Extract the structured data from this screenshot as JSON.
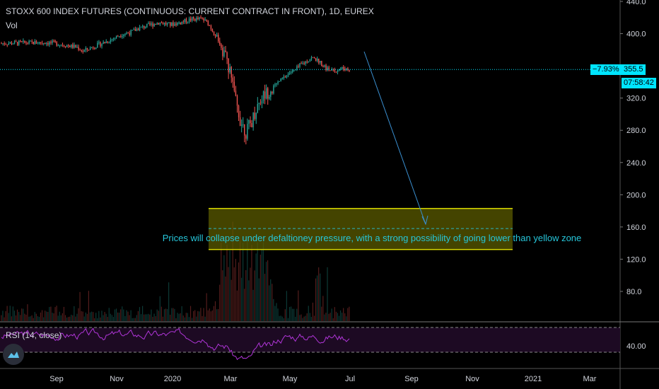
{
  "header": {
    "title": "STOXX 600 INDEX FUTURES (CONTINUOUS: CURRENT CONTRACT IN FRONT), 1D, EUREX",
    "volume_label": "Vol",
    "rsi_label": "RSI (14, close)"
  },
  "price_badges": {
    "change": "−7.93%",
    "price": "355.5",
    "countdown": "07:58:42"
  },
  "annotation": "Prices will collapse under defaltioney pressure, with a strong possibility of going lower than yellow zone",
  "colors": {
    "up": "#26a69a",
    "down": "#ef5350",
    "accent": "#00e5ff",
    "zone_fill": "#5b5b00",
    "zone_border": "#d4d400",
    "rsi": "#b035d8",
    "annotation": "#26c6da"
  },
  "logo_icon": "tradingview-cloud-icon",
  "chart_data": {
    "type": "candlestick",
    "y_axis": {
      "ticks": [
        "440.0",
        "400.0",
        "320.0",
        "280.0",
        "240.0",
        "200.0",
        "160.0",
        "120.0",
        "80.0"
      ],
      "range": [
        45,
        445
      ]
    },
    "x_axis": {
      "ticks": [
        "Sep",
        "Nov",
        "2020",
        "Mar",
        "May",
        "Jul",
        "Sep",
        "Nov",
        "2021",
        "Mar"
      ]
    },
    "current_price": 355.5,
    "price_path": [
      [
        0,
        388
      ],
      [
        8,
        389
      ],
      [
        10,
        388
      ],
      [
        14,
        383
      ],
      [
        15,
        378
      ],
      [
        17,
        384
      ],
      [
        20,
        392
      ],
      [
        22,
        399
      ],
      [
        24,
        402
      ],
      [
        25,
        406
      ],
      [
        27,
        410
      ],
      [
        29,
        414
      ],
      [
        31,
        411
      ],
      [
        33,
        414
      ],
      [
        35,
        418
      ],
      [
        37,
        418
      ],
      [
        38,
        413
      ],
      [
        39,
        402
      ],
      [
        40,
        392
      ],
      [
        41,
        376
      ],
      [
        42,
        355
      ],
      [
        43,
        318
      ],
      [
        44,
        292
      ],
      [
        45,
        278
      ],
      [
        46,
        290
      ],
      [
        47,
        310
      ],
      [
        48,
        322
      ],
      [
        49,
        328
      ],
      [
        50,
        333
      ],
      [
        51,
        340
      ],
      [
        52,
        345
      ],
      [
        53,
        352
      ],
      [
        54,
        354
      ],
      [
        55,
        361
      ],
      [
        56,
        365
      ],
      [
        57,
        370
      ],
      [
        58,
        368
      ],
      [
        59,
        362
      ],
      [
        60,
        356
      ],
      [
        61,
        353
      ],
      [
        62,
        356
      ],
      [
        63,
        357
      ],
      [
        64,
        355.5
      ]
    ],
    "zone": {
      "low": 132,
      "high": 183,
      "mid": 158
    },
    "rsi": {
      "ticks": [
        "40.00"
      ],
      "levels": [
        70,
        30
      ],
      "range": [
        5,
        80
      ]
    }
  }
}
